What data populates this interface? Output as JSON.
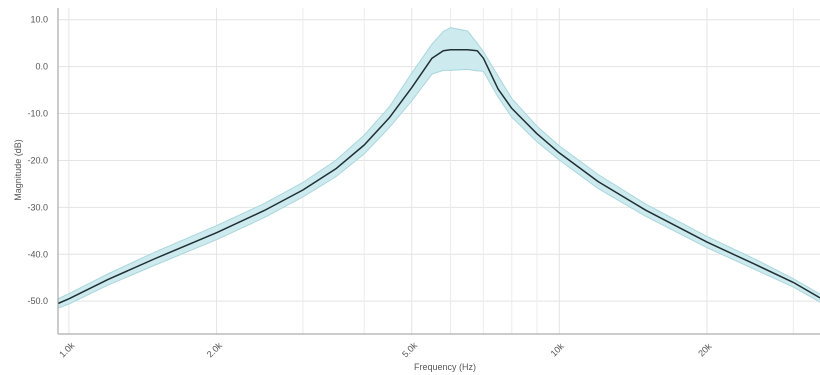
{
  "chart_data": {
    "type": "line",
    "title": "",
    "xlabel": "Frequency (Hz)",
    "ylabel": "Magnitude (dB)",
    "xscale": "log",
    "xlim": [
      950,
      34000
    ],
    "ylim": [
      -57,
      12.5
    ],
    "grid": true,
    "legend": "none",
    "yticks": [
      {
        "value": 10,
        "label": "10.0"
      },
      {
        "value": 0,
        "label": "0.0"
      },
      {
        "value": -10,
        "label": "-10.0"
      },
      {
        "value": -20,
        "label": "-20.0"
      },
      {
        "value": -30,
        "label": "-30.0"
      },
      {
        "value": -40,
        "label": "-40.0"
      },
      {
        "value": -50,
        "label": "-50.0"
      }
    ],
    "xticks": [
      {
        "value": 1000,
        "label": "1.0k"
      },
      {
        "value": 2000,
        "label": "2.0k"
      },
      {
        "value": 5000,
        "label": "5.0k"
      },
      {
        "value": 10000,
        "label": "10k"
      },
      {
        "value": 20000,
        "label": "20k"
      }
    ],
    "minor_x_gridlines": [
      3000,
      4000,
      6000,
      7000,
      8000,
      9000,
      30000
    ],
    "series": [
      {
        "role": "median",
        "color": "#1f2f33",
        "x": [
          950,
          1000,
          1200,
          1500,
          2000,
          2500,
          3000,
          3500,
          4000,
          4500,
          5000,
          5500,
          5800,
          6000,
          6500,
          6800,
          7000,
          7500,
          8000,
          9000,
          10000,
          12000,
          15000,
          20000,
          25000,
          30000,
          34000
        ],
        "y": [
          -50.5,
          -49.5,
          -45.4,
          -40.9,
          -35.4,
          -30.7,
          -26.3,
          -21.8,
          -16.7,
          -10.9,
          -4.5,
          1.8,
          3.4,
          3.6,
          3.6,
          3.4,
          1.8,
          -4.8,
          -8.9,
          -14.3,
          -18.4,
          -24.5,
          -30.6,
          -37.4,
          -42.1,
          -46.0,
          -49.3
        ]
      },
      {
        "role": "band",
        "color": "#cdebef",
        "stroke": "#a9d6dc",
        "x": [
          950,
          1000,
          1200,
          1500,
          2000,
          2500,
          3000,
          3500,
          4000,
          4500,
          5000,
          5500,
          5800,
          6000,
          6500,
          6800,
          7000,
          7500,
          8000,
          9000,
          10000,
          12000,
          15000,
          20000,
          25000,
          30000,
          34000
        ],
        "upper": [
          -49.5,
          -48.4,
          -44.2,
          -39.5,
          -33.9,
          -29.2,
          -24.7,
          -20.0,
          -14.6,
          -8.6,
          -1.4,
          4.8,
          7.5,
          8.3,
          7.6,
          5.0,
          3.2,
          -2.0,
          -6.8,
          -12.7,
          -16.9,
          -23.0,
          -29.3,
          -36.2,
          -41.0,
          -45.2,
          -48.5
        ],
        "lower": [
          -51.5,
          -50.6,
          -46.6,
          -42.3,
          -36.9,
          -32.2,
          -27.8,
          -23.5,
          -18.6,
          -13.0,
          -7.3,
          -1.6,
          -0.8,
          -0.8,
          -0.6,
          -0.9,
          -1.0,
          -6.5,
          -10.8,
          -16.0,
          -19.9,
          -26.0,
          -31.9,
          -38.6,
          -43.2,
          -47.0,
          -50.2
        ]
      }
    ]
  }
}
